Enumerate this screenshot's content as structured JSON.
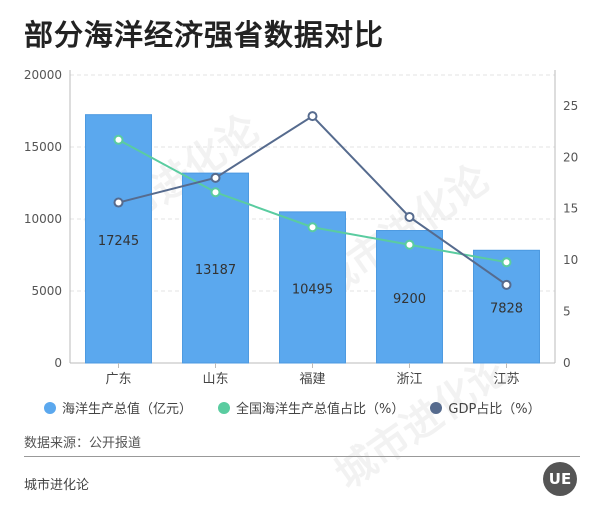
{
  "title": "部分海洋经济强省数据对比",
  "source": "数据来源：公开报道",
  "footer": "城市进化论",
  "watermark": "城市进化论",
  "logo": "UE",
  "colors": {
    "bar": "#5BA8EE",
    "bar_stroke": "#4B98E0",
    "share_line": "#5ACCA0",
    "gdp_line": "#566B8E"
  },
  "chart_data": {
    "type": "bar",
    "categories": [
      "广东",
      "山东",
      "福建",
      "浙江",
      "江苏"
    ],
    "series": [
      {
        "name": "海洋生产总值（亿元）",
        "type": "bar",
        "axis": "left",
        "values": [
          17245,
          13187,
          10495,
          9200,
          7828
        ],
        "labels": [
          "17245",
          "13187",
          "10495",
          "9200",
          "7828"
        ]
      },
      {
        "name": "全国海洋生产总值占比（%）",
        "type": "line",
        "axis": "right",
        "values": [
          21.7,
          16.6,
          13.2,
          11.5,
          9.8
        ]
      },
      {
        "name": "GDP占比（%）",
        "type": "line",
        "axis": "right",
        "values": [
          15.6,
          18.0,
          24.0,
          14.2,
          7.6
        ]
      }
    ],
    "y_left": {
      "ylim": [
        0,
        20000
      ],
      "ticks": [
        "0",
        "5000",
        "10000",
        "15000",
        "20000"
      ]
    },
    "y_right": {
      "ylim": [
        0,
        28
      ],
      "ticks": [
        "0",
        "5",
        "10",
        "15",
        "20",
        "25"
      ]
    },
    "grid": true,
    "legend_position": "bottom"
  }
}
